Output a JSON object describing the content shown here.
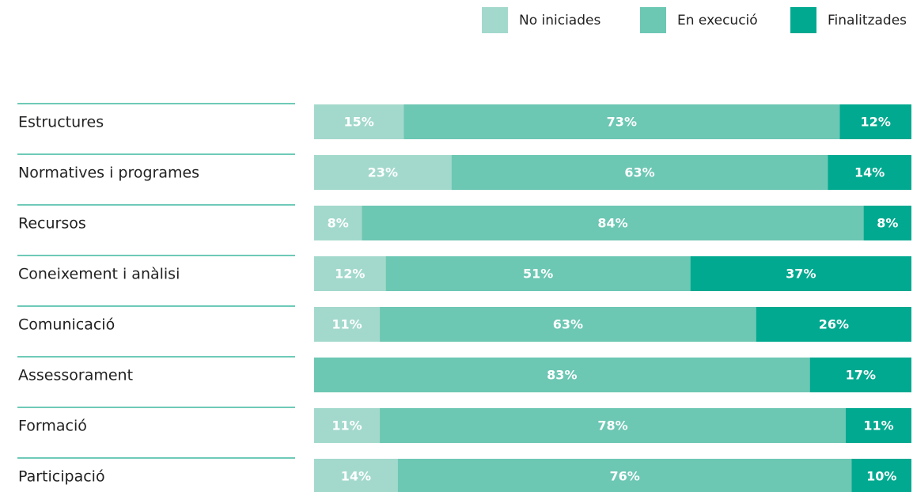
{
  "chart_data": {
    "type": "stacked-bar-horizontal",
    "categories": [
      "Estructures",
      "Normatives i programes",
      "Recursos",
      "Coneixement i anàlisi",
      "Comunicació",
      "Assessorament",
      "Formació",
      "Participació"
    ],
    "xlim": [
      0,
      100
    ],
    "legend": "top-right",
    "series": [
      {
        "name": "No iniciades",
        "color": "#a3d9cc",
        "values": [
          15,
          23,
          8,
          12,
          11,
          null,
          11,
          14
        ],
        "value_labels": [
          "15%",
          "23%",
          "8%",
          "12%",
          "11%",
          null,
          "11%",
          "14%"
        ]
      },
      {
        "name": "En execució",
        "color": "#6cc7b3",
        "values": [
          73,
          63,
          84,
          51,
          63,
          83,
          78,
          76
        ],
        "value_labels": [
          "73%",
          "63%",
          "84%",
          "51%",
          "63%",
          "83%",
          "78%",
          "76%"
        ]
      },
      {
        "name": "Finalitzades",
        "color": "#00a98f",
        "values": [
          12,
          14,
          8,
          37,
          26,
          17,
          11,
          10
        ],
        "value_labels": [
          "12%",
          "14%",
          "8%",
          "37%",
          "26%",
          "17%",
          "11%",
          "10%"
        ]
      }
    ]
  }
}
